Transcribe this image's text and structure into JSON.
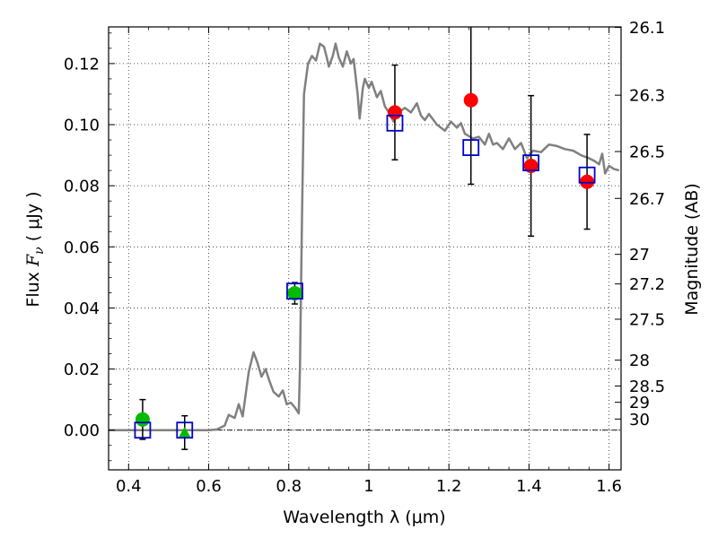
{
  "chart_data": {
    "type": "scatter",
    "xlabel": "Wavelength  λ (μm)",
    "ylabel_parts": [
      "Flux  ",
      "F",
      "ν",
      "  ( μJy )"
    ],
    "y2label": "Magnitude (AB)",
    "xlim": [
      0.35,
      1.63
    ],
    "ylim": [
      -0.013,
      0.132
    ],
    "grid": true,
    "colors": {
      "sed": "#808080",
      "green": "#00bb00",
      "red": "#ff0000",
      "square": "#0000cc"
    },
    "x_ticks": [
      {
        "v": 0.4,
        "label": "0.4"
      },
      {
        "v": 0.6,
        "label": "0.6"
      },
      {
        "v": 0.8,
        "label": "0.8"
      },
      {
        "v": 1.0,
        "label": "1"
      },
      {
        "v": 1.2,
        "label": "1.2"
      },
      {
        "v": 1.4,
        "label": "1.4"
      },
      {
        "v": 1.6,
        "label": "1.6"
      }
    ],
    "y_ticks": [
      {
        "v": 0.0,
        "label": "0.00"
      },
      {
        "v": 0.02,
        "label": "0.02"
      },
      {
        "v": 0.04,
        "label": "0.04"
      },
      {
        "v": 0.06,
        "label": "0.06"
      },
      {
        "v": 0.08,
        "label": "0.08"
      },
      {
        "v": 0.1,
        "label": "0.10"
      },
      {
        "v": 0.12,
        "label": "0.12"
      }
    ],
    "y2_ticks": [
      {
        "mag": 26.1,
        "label": "26.1"
      },
      {
        "mag": 26.3,
        "label": "26.3"
      },
      {
        "mag": 26.5,
        "label": "26.5"
      },
      {
        "mag": 26.7,
        "label": "26.7"
      },
      {
        "mag": 27.0,
        "label": "27"
      },
      {
        "mag": 27.2,
        "label": "27.2"
      },
      {
        "mag": 27.5,
        "label": "27.5"
      },
      {
        "mag": 28.0,
        "label": "28"
      },
      {
        "mag": 28.5,
        "label": "28.5"
      },
      {
        "mag": 29.0,
        "label": "29"
      },
      {
        "mag": 30.0,
        "label": "30"
      }
    ],
    "sed_model": [
      [
        0.35,
        0.0
      ],
      [
        0.6,
        0.0
      ],
      [
        0.62,
        0.0002
      ],
      [
        0.64,
        0.0015
      ],
      [
        0.65,
        0.005
      ],
      [
        0.665,
        0.004
      ],
      [
        0.675,
        0.0085
      ],
      [
        0.685,
        0.0045
      ],
      [
        0.7,
        0.019
      ],
      [
        0.712,
        0.0255
      ],
      [
        0.722,
        0.022
      ],
      [
        0.732,
        0.0175
      ],
      [
        0.742,
        0.02
      ],
      [
        0.752,
        0.016
      ],
      [
        0.762,
        0.0125
      ],
      [
        0.775,
        0.011
      ],
      [
        0.785,
        0.013
      ],
      [
        0.795,
        0.0085
      ],
      [
        0.805,
        0.009
      ],
      [
        0.815,
        0.0075
      ],
      [
        0.825,
        0.0055
      ],
      [
        0.828,
        0.02
      ],
      [
        0.833,
        0.07
      ],
      [
        0.838,
        0.11
      ],
      [
        0.848,
        0.12
      ],
      [
        0.858,
        0.1225
      ],
      [
        0.868,
        0.121
      ],
      [
        0.878,
        0.1265
      ],
      [
        0.888,
        0.1255
      ],
      [
        0.895,
        0.122
      ],
      [
        0.9,
        0.119
      ],
      [
        0.91,
        0.1225
      ],
      [
        0.917,
        0.1265
      ],
      [
        0.925,
        0.122
      ],
      [
        0.935,
        0.119
      ],
      [
        0.945,
        0.124
      ],
      [
        0.955,
        0.12
      ],
      [
        0.962,
        0.1215
      ],
      [
        0.972,
        0.11
      ],
      [
        0.977,
        0.102
      ],
      [
        0.985,
        0.112
      ],
      [
        0.99,
        0.115
      ],
      [
        1.0,
        0.112
      ],
      [
        1.007,
        0.114
      ],
      [
        1.02,
        0.109
      ],
      [
        1.03,
        0.111
      ],
      [
        1.04,
        0.106
      ],
      [
        1.05,
        0.104
      ],
      [
        1.062,
        0.101
      ],
      [
        1.075,
        0.104
      ],
      [
        1.09,
        0.1055
      ],
      [
        1.105,
        0.104
      ],
      [
        1.12,
        0.107
      ],
      [
        1.13,
        0.103
      ],
      [
        1.14,
        0.1015
      ],
      [
        1.15,
        0.1035
      ],
      [
        1.17,
        0.1
      ],
      [
        1.19,
        0.098
      ],
      [
        1.205,
        0.101
      ],
      [
        1.22,
        0.099
      ],
      [
        1.23,
        0.1005
      ],
      [
        1.24,
        0.097
      ],
      [
        1.26,
        0.0955
      ],
      [
        1.275,
        0.096
      ],
      [
        1.29,
        0.0935
      ],
      [
        1.3,
        0.097
      ],
      [
        1.31,
        0.0935
      ],
      [
        1.32,
        0.094
      ],
      [
        1.335,
        0.092
      ],
      [
        1.35,
        0.0955
      ],
      [
        1.365,
        0.092
      ],
      [
        1.38,
        0.094
      ],
      [
        1.395,
        0.089
      ],
      [
        1.41,
        0.0915
      ],
      [
        1.43,
        0.091
      ],
      [
        1.45,
        0.0935
      ],
      [
        1.47,
        0.093
      ],
      [
        1.49,
        0.092
      ],
      [
        1.51,
        0.0915
      ],
      [
        1.53,
        0.09
      ],
      [
        1.55,
        0.089
      ],
      [
        1.565,
        0.088
      ],
      [
        1.575,
        0.087
      ],
      [
        1.583,
        0.0905
      ],
      [
        1.59,
        0.084
      ],
      [
        1.6,
        0.0865
      ],
      [
        1.612,
        0.0855
      ],
      [
        1.625,
        0.085
      ]
    ],
    "series": [
      {
        "marker": "circle",
        "color": "green",
        "points": [
          {
            "x": 0.435,
            "y": 0.0035,
            "err": 0.0065
          },
          {
            "x": 0.815,
            "y": 0.0448,
            "err": 0.0035
          }
        ]
      },
      {
        "marker": "triangle",
        "color": "green",
        "points": [
          {
            "x": 0.54,
            "y": -0.0008,
            "err": 0.0055
          }
        ]
      },
      {
        "marker": "circle",
        "color": "red",
        "points": [
          {
            "x": 1.065,
            "y": 0.104,
            "err": 0.0155
          },
          {
            "x": 1.255,
            "y": 0.108,
            "err": 0.0275
          },
          {
            "x": 1.405,
            "y": 0.0865,
            "err": 0.023
          },
          {
            "x": 1.545,
            "y": 0.0813,
            "err": 0.0155
          }
        ]
      },
      {
        "marker": "open-square",
        "color": "square",
        "points": [
          {
            "x": 0.435,
            "y": 0.0
          },
          {
            "x": 0.54,
            "y": 0.0
          },
          {
            "x": 0.815,
            "y": 0.0455
          },
          {
            "x": 1.065,
            "y": 0.1005
          },
          {
            "x": 1.255,
            "y": 0.0925
          },
          {
            "x": 1.405,
            "y": 0.0875
          },
          {
            "x": 1.545,
            "y": 0.0835
          }
        ]
      }
    ]
  }
}
